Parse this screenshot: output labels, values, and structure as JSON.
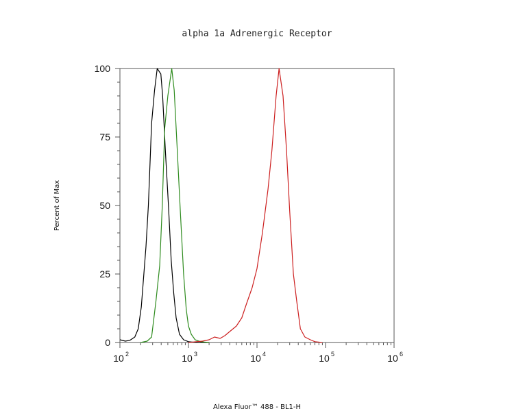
{
  "chart_data": {
    "type": "line",
    "title": "alpha 1a Adrenergic Receptor",
    "xlabel": "Alexa Fluor™ 488 - BL1-H",
    "ylabel": "Percent of Max",
    "xscale": "log",
    "xlim": [
      100,
      1000000
    ],
    "ylim": [
      0,
      100
    ],
    "y_ticks": [
      "0",
      "25",
      "50",
      "75",
      "100"
    ],
    "x_ticks": [
      {
        "base": "10",
        "exp": "2"
      },
      {
        "base": "10",
        "exp": "3"
      },
      {
        "base": "10",
        "exp": "4"
      },
      {
        "base": "10",
        "exp": "5"
      },
      {
        "base": "10",
        "exp": "6"
      }
    ],
    "grid": false,
    "series": [
      {
        "color": "#000000",
        "points": [
          [
            100,
            1
          ],
          [
            120,
            0.5
          ],
          [
            140,
            0.8
          ],
          [
            165,
            2
          ],
          [
            185,
            5
          ],
          [
            205,
            13
          ],
          [
            240,
            35
          ],
          [
            260,
            50
          ],
          [
            290,
            80
          ],
          [
            320,
            92
          ],
          [
            350,
            100
          ],
          [
            395,
            98
          ],
          [
            420,
            90
          ],
          [
            460,
            70
          ],
          [
            510,
            50
          ],
          [
            560,
            30
          ],
          [
            610,
            18
          ],
          [
            660,
            9
          ],
          [
            740,
            3
          ],
          [
            850,
            1
          ],
          [
            1000,
            0.3
          ],
          [
            1300,
            0
          ],
          [
            1600,
            0
          ],
          [
            2000,
            0
          ]
        ]
      },
      {
        "color": "#2e8b1e",
        "points": [
          [
            200,
            0
          ],
          [
            250,
            0.5
          ],
          [
            290,
            2
          ],
          [
            335,
            15
          ],
          [
            380,
            28
          ],
          [
            415,
            50
          ],
          [
            450,
            78
          ],
          [
            500,
            90
          ],
          [
            570,
            100
          ],
          [
            620,
            92
          ],
          [
            680,
            72
          ],
          [
            760,
            48
          ],
          [
            850,
            25
          ],
          [
            930,
            12
          ],
          [
            1000,
            6
          ],
          [
            1100,
            3
          ],
          [
            1250,
            1
          ],
          [
            1500,
            0.3
          ],
          [
            2000,
            0
          ]
        ]
      },
      {
        "color": "#cc1f1f",
        "points": [
          [
            1000,
            0
          ],
          [
            1300,
            0.3
          ],
          [
            1600,
            0.5
          ],
          [
            2000,
            1
          ],
          [
            2400,
            2
          ],
          [
            2900,
            1.5
          ],
          [
            3400,
            2.5
          ],
          [
            4000,
            4
          ],
          [
            5000,
            6
          ],
          [
            6000,
            9
          ],
          [
            7000,
            14
          ],
          [
            8500,
            20
          ],
          [
            10000,
            27
          ],
          [
            12000,
            40
          ],
          [
            14500,
            56
          ],
          [
            16500,
            70
          ],
          [
            19000,
            90
          ],
          [
            21000,
            100
          ],
          [
            24000,
            90
          ],
          [
            27000,
            70
          ],
          [
            30000,
            48
          ],
          [
            34000,
            25
          ],
          [
            38000,
            15
          ],
          [
            43000,
            5
          ],
          [
            50000,
            2
          ],
          [
            60000,
            1
          ],
          [
            70000,
            0.3
          ],
          [
            90000,
            0
          ]
        ]
      }
    ]
  }
}
